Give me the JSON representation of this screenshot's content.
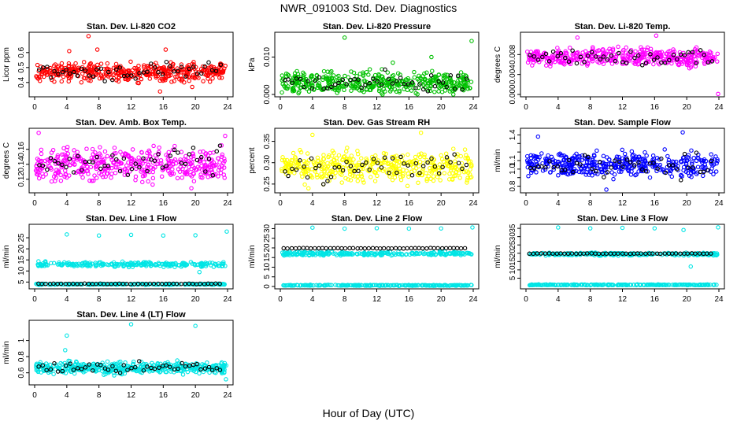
{
  "figure": {
    "title": "NWR_091003  Std. Dev. Diagnostics",
    "xlabel": "Hour of Day (UTC)"
  },
  "chart_data": [
    {
      "type": "scatter",
      "title": "Stan. Dev. Li-820 CO2",
      "ylabel": "Licor ppm",
      "xticks": [
        0,
        4,
        8,
        12,
        16,
        20,
        24
      ],
      "yticks": [
        0.4,
        0.5,
        0.6
      ],
      "xlim": [
        0,
        24
      ],
      "ylim": [
        0.32,
        0.72
      ],
      "color": "#ff0000",
      "black_outliers": true,
      "baseline": 0.47,
      "spread": 0.05,
      "outliers": [
        [
          6.7,
          0.71
        ],
        [
          4.3,
          0.61
        ],
        [
          7.8,
          0.62
        ],
        [
          16.3,
          0.62
        ],
        [
          19.6,
          0.37
        ],
        [
          15.6,
          0.34
        ]
      ]
    },
    {
      "type": "scatter",
      "title": "Stan. Dev. Li-820 Pressure",
      "ylabel": "kPa",
      "xticks": [
        0,
        4,
        8,
        12,
        16,
        20,
        24
      ],
      "yticks": [
        0.0,
        0.01
      ],
      "ytick_labels": [
        "0.000",
        "0.010"
      ],
      "xlim": [
        0,
        24
      ],
      "ylim": [
        0,
        0.016
      ],
      "color": "#00c000",
      "black_outliers": true,
      "baseline": 0.003,
      "spread": 0.0025,
      "outliers": [
        [
          8.0,
          0.0152
        ],
        [
          23.8,
          0.0143
        ],
        [
          18.8,
          0.01
        ],
        [
          14.0,
          0.0085
        ]
      ]
    },
    {
      "type": "scatter",
      "title": "Stan. Dev. Li-820 Temp.",
      "ylabel": "degrees C",
      "xticks": [
        0,
        4,
        8,
        12,
        16,
        20,
        24
      ],
      "yticks": [
        0.0,
        0.004,
        0.008
      ],
      "ytick_labels": [
        "0.000",
        "0.004",
        "0.008"
      ],
      "xlim": [
        0,
        24
      ],
      "ylim": [
        0,
        0.012
      ],
      "color": "#ff00ff",
      "black_outliers": true,
      "baseline": 0.0075,
      "spread": 0.0015,
      "outliers": [
        [
          23.9,
          0.0001
        ],
        [
          16.2,
          0.0118
        ],
        [
          6.4,
          0.0114
        ]
      ]
    },
    {
      "type": "scatter",
      "title": "Stan. Dev. Amb. Box Temp.",
      "ylabel": "degrees C",
      "xticks": [
        0,
        4,
        8,
        12,
        16,
        20,
        24
      ],
      "yticks": [
        0.12,
        0.14,
        0.16
      ],
      "xlim": [
        0,
        24
      ],
      "ylim": [
        0.105,
        0.185
      ],
      "color": "#ff00ff",
      "black_outliers": true,
      "baseline": 0.14,
      "spread": 0.018,
      "outliers": [
        [
          0.5,
          0.182
        ],
        [
          19.5,
          0.108
        ],
        [
          23.7,
          0.178
        ]
      ]
    },
    {
      "type": "scatter",
      "title": "Stan. Dev. Gas Stream RH",
      "ylabel": "percent",
      "xticks": [
        0,
        4,
        8,
        12,
        16,
        20,
        24
      ],
      "yticks": [
        0.25,
        0.3,
        0.35
      ],
      "ytick_labels": [
        "0.25",
        "0.30",
        "0.35"
      ],
      "xlim": [
        0,
        24
      ],
      "ylim": [
        0.235,
        0.375
      ],
      "color": "#ffff00",
      "black_outliers": true,
      "baseline": 0.29,
      "spread": 0.03,
      "outliers": [
        [
          4.0,
          0.365
        ],
        [
          17.5,
          0.37
        ],
        [
          3.5,
          0.24
        ]
      ]
    },
    {
      "type": "scatter",
      "title": "Stan. Dev. Sample Flow",
      "ylabel": "ml/min",
      "xticks": [
        0,
        4,
        8,
        12,
        16,
        20,
        24
      ],
      "yticks": [
        0.8,
        0.9,
        1.0,
        1.1,
        1.2,
        1.3,
        1.4
      ],
      "ytick_labels": [
        "0.8",
        "",
        "1.0",
        "1.1",
        "",
        "",
        "1.4"
      ],
      "xlim": [
        0,
        24
      ],
      "ylim": [
        0.75,
        1.45
      ],
      "color": "#0000ff",
      "black_outliers": true,
      "baseline": 1.05,
      "spread": 0.12,
      "outliers": [
        [
          1.5,
          1.38
        ],
        [
          19.5,
          1.43
        ],
        [
          10.0,
          0.76
        ]
      ]
    },
    {
      "type": "scatter",
      "title": "Stan. Dev. Line 1 Flow",
      "ylabel": "ml/min",
      "xticks": [
        0,
        4,
        8,
        12,
        16,
        20,
        24
      ],
      "yticks": [
        5,
        10,
        15,
        20,
        25
      ],
      "xlim": [
        0,
        24
      ],
      "ylim": [
        3,
        30
      ],
      "color": "#00e5e5",
      "bands": [
        {
          "y": 13,
          "spread": 0.9,
          "color": "#00e5e5"
        },
        {
          "y": 4,
          "spread": 0.2,
          "color": "#00e5e5"
        }
      ],
      "black_line": 4.2,
      "outliers": [
        [
          4,
          26.5
        ],
        [
          8,
          26
        ],
        [
          12,
          26.3
        ],
        [
          16,
          26
        ],
        [
          20,
          26.1
        ],
        [
          23.9,
          27.8
        ],
        [
          20.5,
          9.5
        ]
      ]
    },
    {
      "type": "scatter",
      "title": "Stan. Dev. Line 2 Flow",
      "ylabel": "ml/min",
      "xticks": [
        0,
        4,
        8,
        12,
        16,
        20,
        24
      ],
      "yticks": [
        0,
        5,
        10,
        15,
        20,
        25,
        30
      ],
      "xlim": [
        0,
        24
      ],
      "ylim": [
        0,
        31
      ],
      "color": "#00e5e5",
      "bands": [
        {
          "y": 17,
          "spread": 0.8,
          "color": "#00e5e5"
        },
        {
          "y": 0.6,
          "spread": 0.2,
          "color": "#00e5e5"
        }
      ],
      "black_line": 19.8,
      "outliers": [
        [
          4,
          30.5
        ],
        [
          8,
          30
        ],
        [
          12,
          30.2
        ],
        [
          16,
          30
        ],
        [
          20,
          30.1
        ],
        [
          23.9,
          30.6
        ]
      ]
    },
    {
      "type": "scatter",
      "title": "Stan. Dev. Line 3 Flow",
      "ylabel": "ml/min",
      "xticks": [
        0,
        4,
        8,
        12,
        16,
        20,
        24
      ],
      "yticks": [
        5,
        10,
        15,
        20,
        25,
        30,
        35
      ],
      "xlim": [
        0,
        24
      ],
      "ylim": [
        0,
        36
      ],
      "color": "#00e5e5",
      "bands": [
        {
          "y": 19.5,
          "spread": 0.7,
          "color": "#00e5e5"
        },
        {
          "y": 1,
          "spread": 0.2,
          "color": "#00e5e5"
        }
      ],
      "black_line": 19.8,
      "outliers": [
        [
          4,
          35.5
        ],
        [
          8,
          35
        ],
        [
          12,
          35.3
        ],
        [
          16,
          35
        ],
        [
          19.6,
          34
        ],
        [
          23.9,
          35.6
        ],
        [
          20.5,
          12
        ]
      ]
    },
    {
      "type": "scatter",
      "title": "Stan. Dev. Line 4 (LT) Flow",
      "ylabel": "ml/min",
      "xticks": [
        0,
        4,
        8,
        12,
        16,
        20,
        24
      ],
      "yticks": [
        0.6,
        0.8,
        1.0
      ],
      "xlim": [
        0,
        24
      ],
      "ylim": [
        0.48,
        1.22
      ],
      "color": "#00e5e5",
      "black_outliers": true,
      "baseline": 0.66,
      "spread": 0.06,
      "outliers": [
        [
          4,
          1.06
        ],
        [
          12,
          1.2
        ],
        [
          20,
          1.18
        ],
        [
          3.8,
          0.88
        ],
        [
          23.8,
          0.52
        ]
      ]
    }
  ]
}
